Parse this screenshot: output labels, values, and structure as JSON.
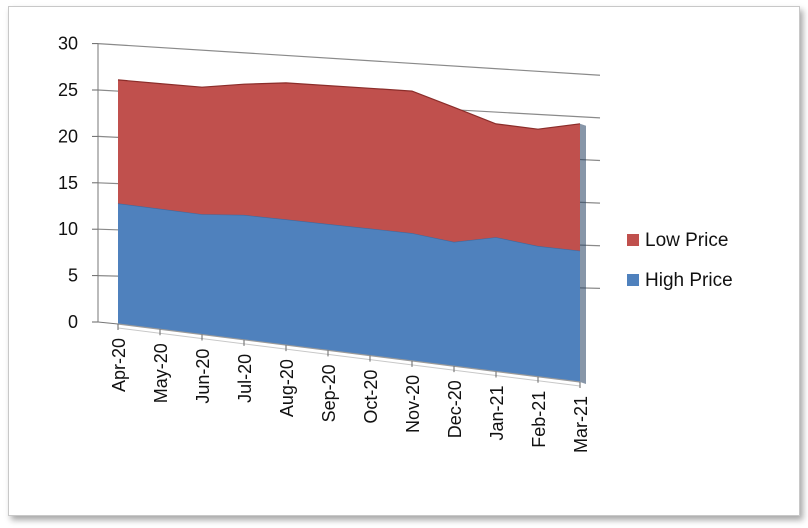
{
  "chart_data": {
    "type": "area",
    "stacked": true,
    "three_d": true,
    "title": "",
    "xlabel": "",
    "ylabel": "",
    "ylim": [
      0,
      30
    ],
    "yticks": [
      0,
      5,
      10,
      15,
      20,
      25,
      30
    ],
    "grid": "horizontal",
    "legend_position": "right",
    "categories": [
      "Apr-20",
      "May-20",
      "Jun-20",
      "Jul-20",
      "Aug-20",
      "Sep-20",
      "Oct-20",
      "Nov-20",
      "Dec-20",
      "Jan-21",
      "Feb-21",
      "Mar-21"
    ],
    "series": [
      {
        "name": "High Price",
        "color": "#4f81bd",
        "values": [
          13.0,
          12.8,
          12.6,
          12.9,
          12.8,
          12.7,
          12.6,
          12.5,
          12.0,
          12.8,
          12.3,
          12.2
        ]
      },
      {
        "name": "Low Price",
        "color": "#c0504d",
        "values": [
          13.3,
          13.3,
          13.3,
          13.5,
          13.9,
          13.9,
          13.9,
          13.9,
          13.0,
          10.8,
          11.0,
          11.8
        ]
      }
    ]
  }
}
